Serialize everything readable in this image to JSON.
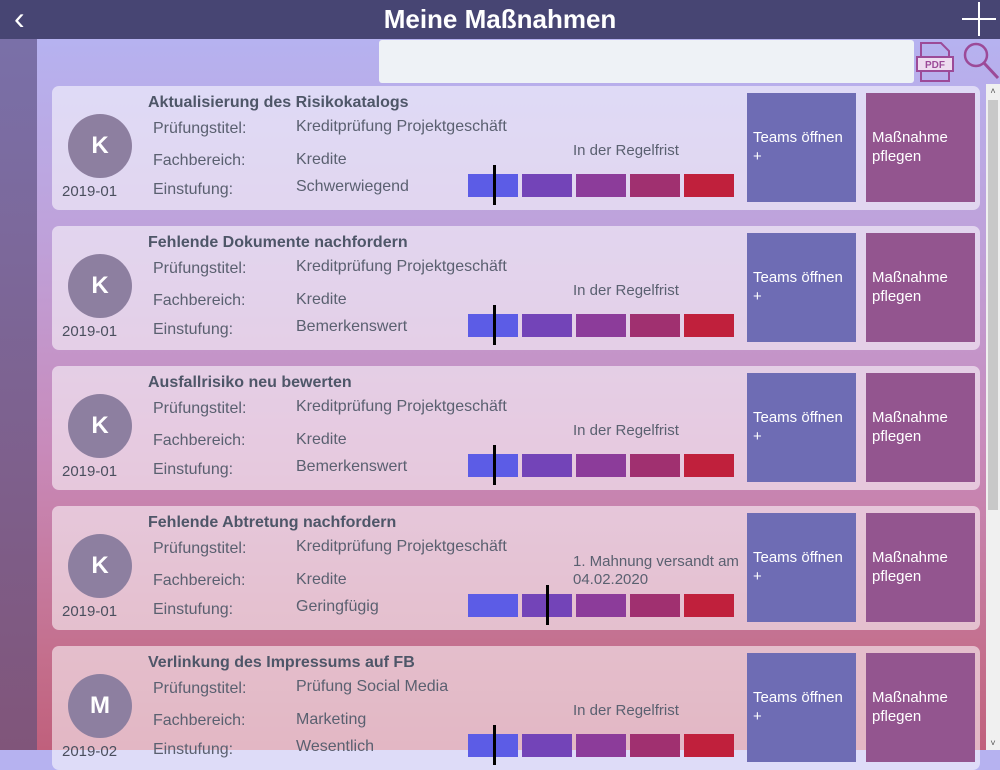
{
  "header": {
    "title": "Meine Maßnahmen",
    "back_icon": "chevron-left-icon",
    "add_icon": "plus-icon"
  },
  "search": {
    "value": "",
    "placeholder": ""
  },
  "toolbar": {
    "pdf_label": "PDF",
    "search_icon": "magnifier-icon"
  },
  "labels": {
    "pruefung": "Prüfungstitel:",
    "fachbereich": "Fachbereich:",
    "einstufung": "Einstufung:"
  },
  "buttons": {
    "teams": "Teams öffnen +",
    "pflegen": "Maßnahme pflegen"
  },
  "severity_colors": [
    "#5c5ce6",
    "#7344b8",
    "#8c3c9a",
    "#a03070",
    "#c0203c"
  ],
  "items": [
    {
      "avatar": "K",
      "date": "2019-01",
      "title": "Aktualisierung des Risikokatalogs",
      "pruefung": "Kreditprüfung Projektgeschäft",
      "fachbereich": "Kredite",
      "einstufung": "Schwerwiegend",
      "status": "In der Regelfrist",
      "marker_position": 0.52
    },
    {
      "avatar": "K",
      "date": "2019-01",
      "title": "Fehlende Dokumente nachfordern",
      "pruefung": "Kreditprüfung Projektgeschäft",
      "fachbereich": "Kredite",
      "einstufung": "Bemerkenswert",
      "status": "In der Regelfrist",
      "marker_position": 0.52
    },
    {
      "avatar": "K",
      "date": "2019-01",
      "title": "Ausfallrisiko neu bewerten",
      "pruefung": "Kreditprüfung Projektgeschäft",
      "fachbereich": "Kredite",
      "einstufung": "Bemerkenswert",
      "status": "In der Regelfrist",
      "marker_position": 0.52
    },
    {
      "avatar": "K",
      "date": "2019-01",
      "title": "Fehlende Abtretung nachfordern",
      "pruefung": "Kreditprüfung Projektgeschäft",
      "fachbereich": "Kredite",
      "einstufung": "Geringfügig",
      "status": "1. Mahnung versandt am 04.02.2020",
      "marker_position": 1.5
    },
    {
      "avatar": "M",
      "date": "2019-02",
      "title": "Verlinkung des Impressums auf FB",
      "pruefung": "Prüfung Social Media",
      "fachbereich": "Marketing",
      "einstufung": "Wesentlich",
      "status": "In der Regelfrist",
      "marker_position": 0.52
    }
  ]
}
